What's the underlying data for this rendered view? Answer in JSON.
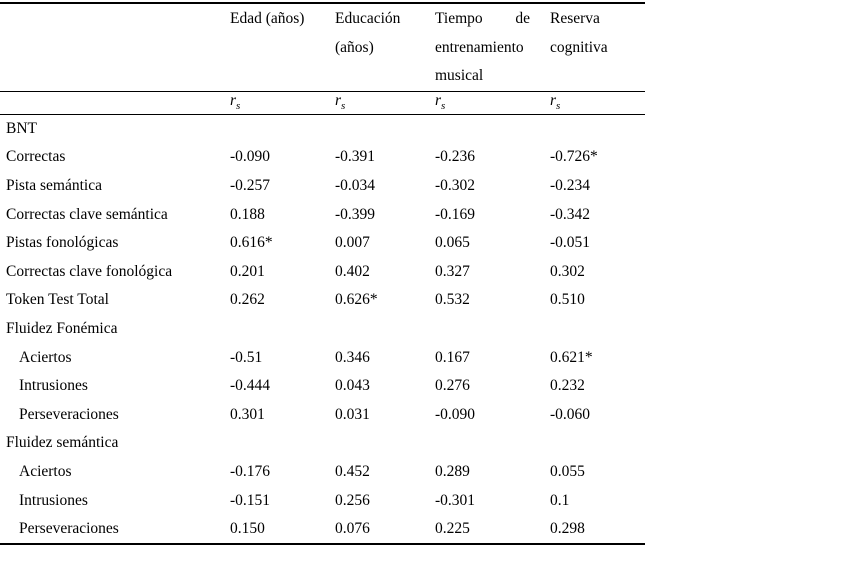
{
  "page": {
    "background": "#ffffff",
    "text_color": "#000000",
    "rule_color": "#000000"
  },
  "chart_data": {
    "type": "table",
    "title": "",
    "columns": [
      "Edad (años)",
      "Educación (años)",
      "Tiempo de entrenamiento musical",
      "Reserva cognitiva"
    ],
    "stat_row": [
      "rs",
      "rs",
      "rs",
      "rs"
    ]
  },
  "table": {
    "columns": [
      {
        "id": "edad",
        "header_lines": [
          "Edad (años)"
        ],
        "justified": false
      },
      {
        "id": "educacion",
        "header_lines": [
          "Educación",
          "(años)"
        ],
        "justified": false
      },
      {
        "id": "tiempo",
        "header_lines": [
          "Tiempo de",
          "entrenamiento",
          "musical"
        ],
        "justified": true
      },
      {
        "id": "reserva",
        "header_lines": [
          "Reserva",
          "cognitiva"
        ],
        "justified": false
      }
    ],
    "stat": {
      "base": "r",
      "subscript": "s"
    },
    "rows": [
      {
        "label": "BNT",
        "indent": false,
        "values": [
          "",
          "",
          "",
          ""
        ]
      },
      {
        "label": "Correctas",
        "indent": false,
        "values": [
          "-0.090",
          "-0.391",
          "-0.236",
          "-0.726*"
        ]
      },
      {
        "label": "Pista semántica",
        "indent": false,
        "values": [
          "-0.257",
          "-0.034",
          "-0.302",
          "-0.234"
        ]
      },
      {
        "label": "Correctas clave semántica",
        "indent": false,
        "values": [
          "0.188",
          "-0.399",
          "-0.169",
          "-0.342"
        ]
      },
      {
        "label": "Pistas fonológicas",
        "indent": false,
        "values": [
          "0.616*",
          "0.007",
          "0.065",
          "-0.051"
        ]
      },
      {
        "label": "Correctas clave fonológica",
        "indent": false,
        "values": [
          "0.201",
          "0.402",
          "0.327",
          "0.302"
        ]
      },
      {
        "label": "Token Test Total",
        "indent": false,
        "values": [
          "0.262",
          "0.626*",
          "0.532",
          "0.510"
        ]
      },
      {
        "label": "Fluidez Fonémica",
        "indent": false,
        "values": [
          "",
          "",
          "",
          ""
        ]
      },
      {
        "label": "Aciertos",
        "indent": true,
        "values": [
          "-0.51",
          "0.346",
          "0.167",
          "0.621*"
        ]
      },
      {
        "label": "Intrusiones",
        "indent": true,
        "values": [
          "-0.444",
          "0.043",
          "0.276",
          "0.232"
        ]
      },
      {
        "label": "Perseveraciones",
        "indent": true,
        "values": [
          "0.301",
          "0.031",
          "-0.090",
          "-0.060"
        ]
      },
      {
        "label": "Fluidez semántica",
        "indent": false,
        "values": [
          "",
          "",
          "",
          ""
        ]
      },
      {
        "label": "Aciertos",
        "indent": true,
        "values": [
          "-0.176",
          "0.452",
          "0.289",
          "0.055"
        ]
      },
      {
        "label": "Intrusiones",
        "indent": true,
        "values": [
          "-0.151",
          "0.256",
          "-0.301",
          "0.1"
        ]
      },
      {
        "label": "Perseveraciones",
        "indent": true,
        "values": [
          "0.150",
          "0.076",
          "0.225",
          "0.298"
        ]
      }
    ]
  }
}
